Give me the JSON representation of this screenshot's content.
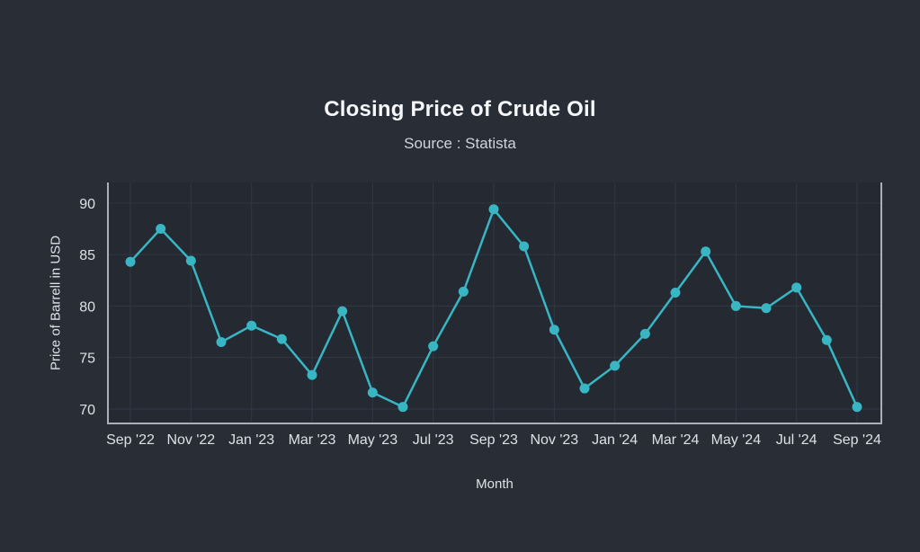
{
  "header": {
    "title": "Closing Price of Crude Oil",
    "subtitle": "Source : Statista"
  },
  "chart_data": {
    "type": "line",
    "title": "Closing Price of Crude Oil",
    "subtitle": "Source : Statista",
    "xlabel": "Month",
    "ylabel": "Price of Barrell in USD",
    "x": [
      "Sep '22",
      "Oct '22",
      "Nov '22",
      "Dec '22",
      "Jan '23",
      "Feb '23",
      "Mar '23",
      "Apr '23",
      "May '23",
      "Jun '23",
      "Jul '23",
      "Aug '23",
      "Sep '23",
      "Oct '23",
      "Nov '23",
      "Dec '23",
      "Jan '24",
      "Feb '24",
      "Mar '24",
      "Apr '24",
      "May '24",
      "Jun '24",
      "Jul '24",
      "Aug '24",
      "Sep '24"
    ],
    "series": [
      {
        "name": "Closing Price of Crude Oil",
        "values": [
          84.3,
          87.5,
          84.4,
          76.5,
          78.1,
          76.8,
          73.3,
          79.5,
          71.6,
          70.2,
          76.1,
          81.4,
          89.4,
          85.8,
          77.7,
          72.0,
          74.2,
          77.3,
          81.3,
          85.3,
          80.0,
          79.8,
          81.8,
          76.7,
          70.2
        ]
      }
    ],
    "x_tick_labels": [
      "Sep '22",
      "Nov '22",
      "Jan '23",
      "Mar '23",
      "May '23",
      "Jul '23",
      "Sep '23",
      "Nov '23",
      "Jan '24",
      "Mar '24",
      "May '24",
      "Jul '24",
      "Sep '24"
    ],
    "y_ticks": [
      70,
      75,
      80,
      85,
      90
    ],
    "ylim": [
      68.6,
      92.0
    ],
    "grid": true,
    "legend": "none",
    "colors": {
      "line": "#38b6c3",
      "point": "#38b6c3",
      "plot_background": "#242932",
      "page_background": "#282d36",
      "grid": "#313845",
      "axis": "#a9b0b9",
      "tick_text": "#dde1e6"
    }
  }
}
